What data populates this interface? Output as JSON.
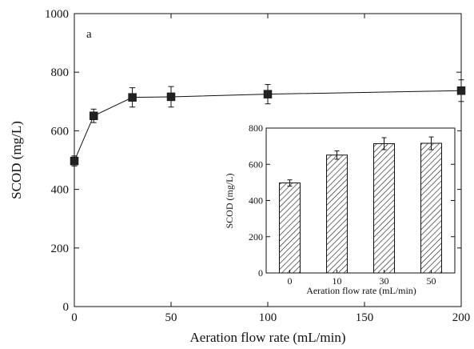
{
  "chart_data": [
    {
      "type": "line",
      "panel_label": "a",
      "xlabel": "Aeration flow rate (mL/min)",
      "ylabel": "SCOD (mg/L)",
      "xlim": [
        0,
        200
      ],
      "ylim": [
        0,
        1000
      ],
      "x_ticks": [
        "0",
        "50",
        "100",
        "150",
        "200"
      ],
      "y_ticks": [
        "0",
        "200",
        "400",
        "600",
        "800",
        "1000"
      ],
      "marker": "square",
      "grid": false,
      "series": [
        {
          "x": [
            0,
            10,
            30,
            50,
            100,
            200
          ],
          "values": [
            497,
            651,
            714,
            716,
            725,
            737
          ],
          "error": [
            17,
            23,
            33,
            35,
            33,
            37
          ]
        }
      ]
    },
    {
      "type": "bar",
      "xlabel": "Aeration flow rate (mL/min)",
      "ylabel": "SCOD (mg/L)",
      "categories": [
        "0",
        "10",
        "30",
        "50"
      ],
      "values": [
        497,
        651,
        714,
        716
      ],
      "error": [
        17,
        23,
        33,
        35
      ],
      "ylim": [
        0,
        800
      ],
      "y_ticks": [
        "0",
        "200",
        "400",
        "600",
        "800"
      ],
      "fill": "diagonal-hatch"
    }
  ]
}
